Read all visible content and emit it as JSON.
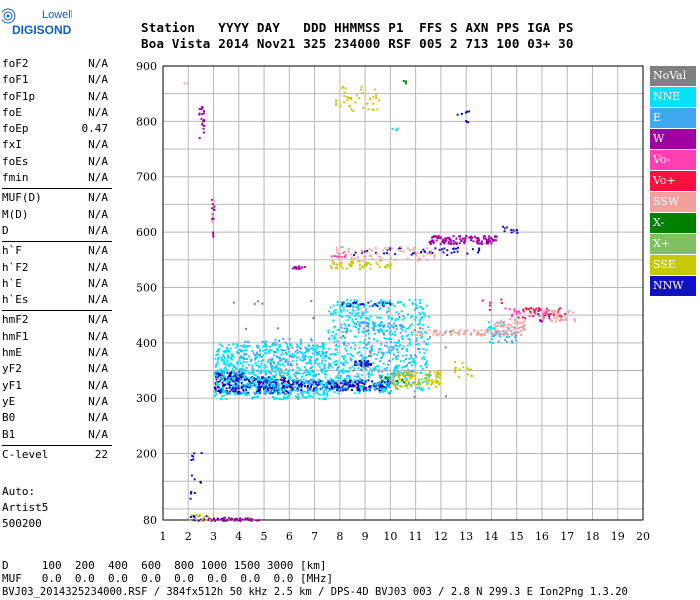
{
  "logo": {
    "line1": "Lowell",
    "line2": "DIGISONDE",
    "icon": "digisonde-logo-icon"
  },
  "header": {
    "line1": "Station   YYYY DAY   DDD HHMMSS P1  FFS S AXN PPS IGA PS",
    "line2": "Boa Vista 2014 Nov21 325 234000 RSF 005 2 713 100 03+ 30"
  },
  "params_groups": [
    [
      {
        "name": "foF2",
        "value": "N/A"
      },
      {
        "name": "foF1",
        "value": "N/A"
      },
      {
        "name": "foF1p",
        "value": "N/A"
      },
      {
        "name": "foE",
        "value": "N/A"
      },
      {
        "name": "foEp",
        "value": "0.47"
      },
      {
        "name": "fxI",
        "value": "N/A"
      },
      {
        "name": "foEs",
        "value": "N/A"
      },
      {
        "name": "fmin",
        "value": "N/A"
      }
    ],
    [
      {
        "name": "MUF(D)",
        "value": "N/A"
      },
      {
        "name": "M(D)",
        "value": "N/A"
      },
      {
        "name": "D",
        "value": "N/A"
      }
    ],
    [
      {
        "name": "h`F",
        "value": "N/A"
      },
      {
        "name": "h`F2",
        "value": "N/A"
      },
      {
        "name": "h`E",
        "value": "N/A"
      },
      {
        "name": "h`Es",
        "value": "N/A"
      }
    ],
    [
      {
        "name": "hmF2",
        "value": "N/A"
      },
      {
        "name": "hmF1",
        "value": "N/A"
      },
      {
        "name": "hmE",
        "value": "N/A"
      },
      {
        "name": "yF2",
        "value": "N/A"
      },
      {
        "name": "yF1",
        "value": "N/A"
      },
      {
        "name": "yE",
        "value": "N/A"
      },
      {
        "name": "B0",
        "value": "N/A"
      },
      {
        "name": "B1",
        "value": "N/A"
      }
    ],
    [
      {
        "name": "C-level",
        "value": "22"
      }
    ]
  ],
  "auto": {
    "line1": "Auto:",
    "line2": "Artist5",
    "line3": "500200"
  },
  "legend": [
    {
      "label": "NoVal",
      "color": "#808080"
    },
    {
      "label": "NNE",
      "color": "#00e0ff"
    },
    {
      "label": "E",
      "color": "#40a8f0"
    },
    {
      "label": "W",
      "color": "#a000a0"
    },
    {
      "label": "Vo-",
      "color": "#ff40b0"
    },
    {
      "label": "Vo+",
      "color": "#ff1040"
    },
    {
      "label": "SSW",
      "color": "#f4a0a0"
    },
    {
      "label": "X-",
      "color": "#008000"
    },
    {
      "label": "X+",
      "color": "#80c060"
    },
    {
      "label": "SSE",
      "color": "#c8c800"
    },
    {
      "label": "NNW",
      "color": "#1010c0"
    }
  ],
  "bottom": {
    "line1": "D     100  200  400  600  800 1000 1500 3000 [km]",
    "line2": "MUF   0.0  0.0  0.0  0.0  0.0  0.0  0.0  0.0 [MHz]"
  },
  "footer": "BVJ03_2014325234000.RSF / 384fx512h 50 kHz 2.5 km / DPS-4D BVJ03 003 / 2.8 N 299.3 E Ion2Png 1.3.20",
  "chart_data": {
    "type": "scatter",
    "xlim": [
      1,
      20
    ],
    "ylim": [
      80,
      900
    ],
    "xticks": [
      1,
      2,
      3,
      4,
      5,
      6,
      7,
      8,
      9,
      10,
      11,
      12,
      13,
      14,
      15,
      16,
      17,
      18,
      19,
      20
    ],
    "yticks": [
      80,
      200,
      300,
      400,
      500,
      600,
      700,
      800,
      900
    ],
    "grid": true,
    "legend_position": "right",
    "series": [
      {
        "name": "NNW",
        "color": "#1010c0",
        "segments": [
          {
            "x": [
              3.0,
              6.0
            ],
            "y": [
              310,
              340
            ],
            "n": 300
          },
          {
            "x": [
              6.0,
              10.0
            ],
            "y": [
              315,
              335
            ],
            "n": 260
          },
          {
            "x": [
              3.0,
              4.2
            ],
            "y": [
              340,
              350
            ],
            "n": 60
          },
          {
            "x": [
              8.0,
              10.0
            ],
            "y": [
              468,
              475
            ],
            "n": 40
          },
          {
            "x": [
              8.5,
              9.2
            ],
            "y": [
              360,
              370
            ],
            "n": 40
          },
          {
            "x": [
              8.5,
              13.5
            ],
            "y": [
              560,
              575
            ],
            "n": 45
          },
          {
            "x": [
              14.3,
              15.0
            ],
            "y": [
              600,
              615
            ],
            "n": 10
          },
          {
            "x": [
              2.0,
              2.5
            ],
            "y": [
              120,
              215
            ],
            "n": 14
          },
          {
            "x": [
              2.0,
              3.5
            ],
            "y": [
              80,
              90
            ],
            "n": 20
          },
          {
            "x": [
              12.5,
              13.2
            ],
            "y": [
              800,
              820
            ],
            "n": 8
          }
        ]
      },
      {
        "name": "NNE",
        "color": "#00e0ff",
        "segments": [
          {
            "x": [
              3.0,
              7.5
            ],
            "y": [
              300,
              400
            ],
            "n": 650
          },
          {
            "x": [
              7.5,
              11.5
            ],
            "y": [
              310,
              480
            ],
            "n": 550
          },
          {
            "x": [
              13.8,
              14.6
            ],
            "y": [
              400,
              440
            ],
            "n": 25
          },
          {
            "x": [
              10.0,
              10.3
            ],
            "y": [
              780,
              790
            ],
            "n": 4
          }
        ]
      },
      {
        "name": "E",
        "color": "#40a8f0",
        "segments": [
          {
            "x": [
              4.0,
              11.0
            ],
            "y": [
              340,
              410
            ],
            "n": 200
          },
          {
            "x": [
              8.0,
              10.5
            ],
            "y": [
              420,
              440
            ],
            "n": 60
          },
          {
            "x": [
              14.0,
              15.0
            ],
            "y": [
              400,
              430
            ],
            "n": 20
          }
        ]
      },
      {
        "name": "W",
        "color": "#a000a0",
        "segments": [
          {
            "x": [
              11.5,
              14.2
            ],
            "y": [
              580,
              595
            ],
            "n": 120
          },
          {
            "x": [
              2.4,
              2.6
            ],
            "y": [
              770,
              830
            ],
            "n": 20
          },
          {
            "x": [
              2.9,
              3.0
            ],
            "y": [
              590,
              660
            ],
            "n": 12
          },
          {
            "x": [
              6.0,
              6.6
            ],
            "y": [
              535,
              540
            ],
            "n": 12
          },
          {
            "x": [
              2.5,
              4.8
            ],
            "y": [
              80,
              86
            ],
            "n": 40
          },
          {
            "x": [
              15.8,
              16.3
            ],
            "y": [
              440,
              460
            ],
            "n": 10
          }
        ]
      },
      {
        "name": "SSW",
        "color": "#f4a0a0",
        "segments": [
          {
            "x": [
              7.8,
              12.0
            ],
            "y": [
              550,
              575
            ],
            "n": 70
          },
          {
            "x": [
              11.0,
              15.2
            ],
            "y": [
              415,
              425
            ],
            "n": 90
          },
          {
            "x": [
              14.0,
              15.3
            ],
            "y": [
              425,
              445
            ],
            "n": 40
          },
          {
            "x": [
              16.0,
              17.3
            ],
            "y": [
              440,
              460
            ],
            "n": 40
          },
          {
            "x": [
              1.8,
              2.0
            ],
            "y": [
              870,
              875
            ],
            "n": 2
          },
          {
            "x": [
              2.9,
              3.0
            ],
            "y": [
              610,
              660
            ],
            "n": 6
          }
        ]
      },
      {
        "name": "SSE",
        "color": "#c8c800",
        "segments": [
          {
            "x": [
              7.6,
              10.0
            ],
            "y": [
              535,
              550
            ],
            "n": 50
          },
          {
            "x": [
              7.8,
              9.6
            ],
            "y": [
              820,
              865
            ],
            "n": 40
          },
          {
            "x": [
              10.0,
              12.0
            ],
            "y": [
              320,
              350
            ],
            "n": 90
          },
          {
            "x": [
              12.5,
              13.2
            ],
            "y": [
              340,
              370
            ],
            "n": 15
          },
          {
            "x": [
              2.0,
              2.9
            ],
            "y": [
              80,
              92
            ],
            "n": 12
          }
        ]
      },
      {
        "name": "X+",
        "color": "#80c060",
        "segments": [
          {
            "x": [
              10.0,
              11.0
            ],
            "y": [
              325,
              345
            ],
            "n": 25
          }
        ]
      },
      {
        "name": "X-",
        "color": "#008000",
        "segments": [
          {
            "x": [
              9.6,
              10.6
            ],
            "y": [
              330,
              340
            ],
            "n": 10
          },
          {
            "x": [
              10.2,
              10.6
            ],
            "y": [
              870,
              875
            ],
            "n": 3
          }
        ]
      },
      {
        "name": "Vo-",
        "color": "#ff40b0",
        "segments": [
          {
            "x": [
              7.5,
              8.2
            ],
            "y": [
              555,
              565
            ],
            "n": 10
          },
          {
            "x": [
              14.5,
              16.8
            ],
            "y": [
              450,
              465
            ],
            "n": 25
          }
        ]
      },
      {
        "name": "Vo+",
        "color": "#ff1040",
        "segments": [
          {
            "x": [
              15.0,
              17.0
            ],
            "y": [
              445,
              465
            ],
            "n": 25
          },
          {
            "x": [
              13.5,
              14.5
            ],
            "y": [
              460,
              480
            ],
            "n": 6
          }
        ]
      },
      {
        "name": "NoVal",
        "color": "#808080",
        "segments": [
          {
            "x": [
              3.5,
              13.0
            ],
            "y": [
              300,
              480
            ],
            "n": 40
          },
          {
            "x": [
              14.5,
              15.0
            ],
            "y": [
              600,
              610
            ],
            "n": 3
          }
        ]
      }
    ]
  }
}
